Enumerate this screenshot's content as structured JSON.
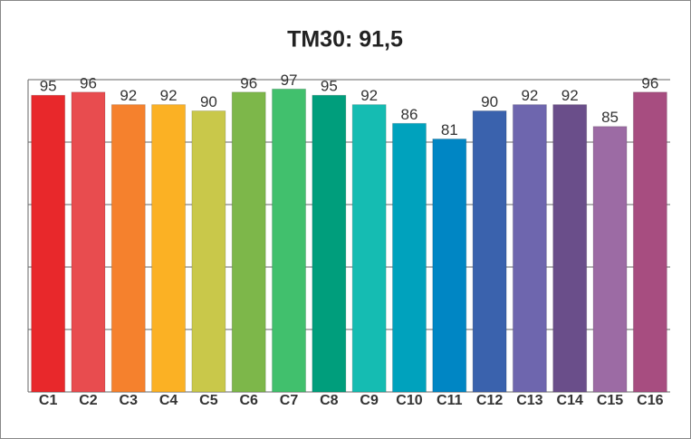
{
  "chart_data": {
    "type": "bar",
    "title": "TM30: 91,5",
    "categories": [
      "C1",
      "C2",
      "C3",
      "C4",
      "C5",
      "C6",
      "C7",
      "C8",
      "C9",
      "C10",
      "C11",
      "C12",
      "C13",
      "C14",
      "C15",
      "C16"
    ],
    "values": [
      95,
      96,
      92,
      92,
      90,
      96,
      97,
      95,
      92,
      86,
      81,
      90,
      92,
      92,
      85,
      96
    ],
    "colors": [
      "#e8282b",
      "#e84c4f",
      "#f5812d",
      "#fbb124",
      "#c9c84a",
      "#7db74a",
      "#41c06d",
      "#009e7c",
      "#15bcb2",
      "#00a2bd",
      "#0086c4",
      "#3a62ad",
      "#6e66ae",
      "#6a4e8a",
      "#9c6ba4",
      "#a74d80"
    ],
    "ylim": [
      0,
      100
    ],
    "yticks": [
      0,
      20,
      40,
      60,
      80,
      100
    ],
    "grid": true
  }
}
